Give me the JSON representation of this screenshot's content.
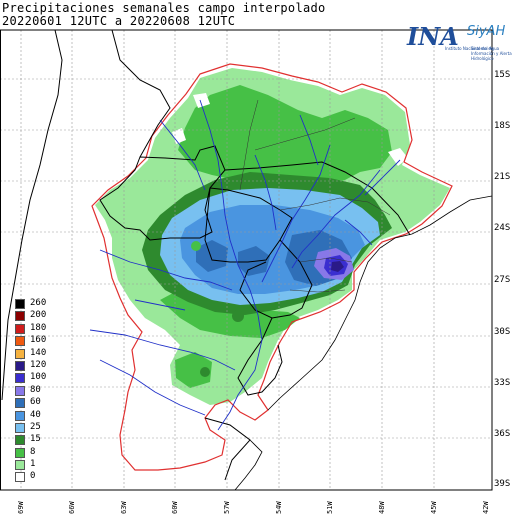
{
  "title": {
    "line1": "Precipitaciones semanales campo interpolado",
    "line2": "20220601 12UTC a 20220608 12UTC"
  },
  "logo": {
    "main": "INA",
    "product": "SiyAH",
    "org": "Instituto Nacional del Agua",
    "subtitle": "Sistema de Información y Alerta Hidrológico"
  },
  "legend": {
    "items": [
      {
        "label": "260",
        "color": "#000000"
      },
      {
        "label": "200",
        "color": "#8b0000"
      },
      {
        "label": "180",
        "color": "#d01c1c"
      },
      {
        "label": "160",
        "color": "#f05a10"
      },
      {
        "label": "140",
        "color": "#f5b240"
      },
      {
        "label": "120",
        "color": "#2a1a88"
      },
      {
        "label": "100",
        "color": "#3a2ed0"
      },
      {
        "label": "80",
        "color": "#8878e8"
      },
      {
        "label": "60",
        "color": "#2f6fb8"
      },
      {
        "label": "40",
        "color": "#4a95e0"
      },
      {
        "label": "25",
        "color": "#78c0f0"
      },
      {
        "label": "15",
        "color": "#2e8a2e"
      },
      {
        "label": "8",
        "color": "#46c046"
      },
      {
        "label": "1",
        "color": "#9ae89a"
      },
      {
        "label": "0",
        "color": "#ffffff"
      }
    ]
  },
  "lat_labels": [
    "15S",
    "18S",
    "21S",
    "24S",
    "27S",
    "30S",
    "33S",
    "36S",
    "39S"
  ],
  "lon_labels": [
    "69W",
    "66W",
    "63W",
    "60W",
    "57W",
    "54W",
    "51W",
    "48W",
    "45W",
    "42W"
  ],
  "colors": {
    "grid": "#999999",
    "border": "#000000",
    "basin_outline": "#e03030",
    "rivers": "#2030c8"
  }
}
